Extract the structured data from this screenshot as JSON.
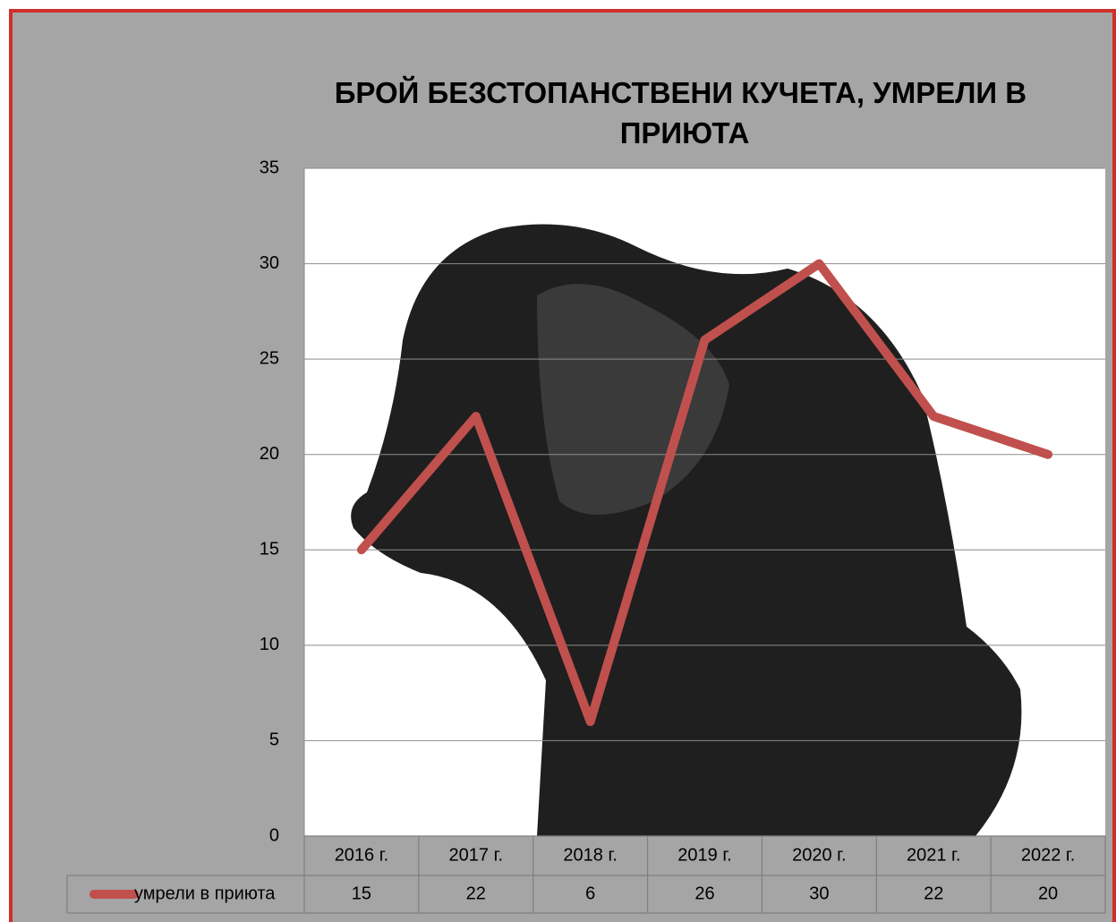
{
  "chart_data": {
    "type": "line",
    "title": "БРОЙ БЕЗСТОПАНСТВЕНИ КУЧЕТА, УМРЕЛИ В ПРИЮТА",
    "categories": [
      "2016 г.",
      "2017 г.",
      "2018 г.",
      "2019 г.",
      "2020 г.",
      "2021 г.",
      "2022 г."
    ],
    "series": [
      {
        "name": "умрели в приюта",
        "color": "#c0504d",
        "values": [
          15,
          22,
          6,
          26,
          30,
          22,
          20
        ]
      }
    ],
    "ylim": [
      0,
      35
    ],
    "yticks": [
      0,
      5,
      10,
      15,
      20,
      25,
      30,
      35
    ],
    "grid": true,
    "data_table": true
  }
}
